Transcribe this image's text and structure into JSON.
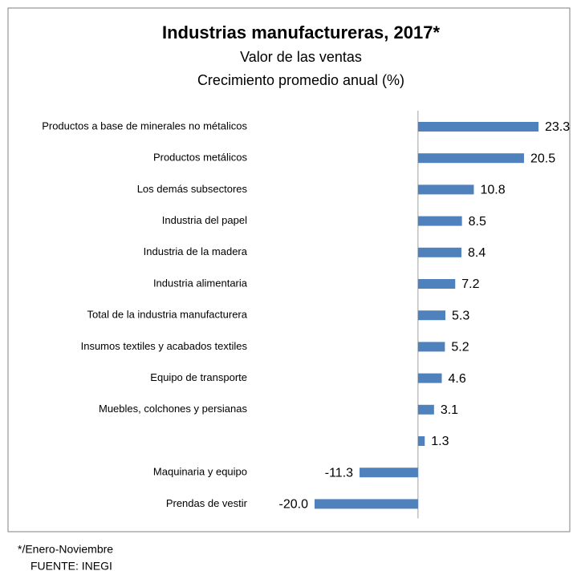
{
  "chart_data": {
    "type": "bar",
    "orientation": "horizontal",
    "title": "Industrias manufactureras, 2017*",
    "subtitle": [
      "Valor de las ventas",
      "Crecimiento promedio anual (%)"
    ],
    "categories": [
      "Productos a base de minerales no métalicos",
      "Productos metálicos",
      "Los demás subsectores",
      "Industria del papel",
      "Industria de la madera",
      "Industria alimentaria",
      "Total de la industria manufacturera",
      "Insumos textiles y acabados textiles",
      "Equipo de transporte",
      "Muebles, colchones y persianas",
      null,
      "Maquinaria y equipo",
      "Prendas de vestir"
    ],
    "values": [
      23.3,
      20.5,
      10.8,
      8.5,
      8.4,
      7.2,
      5.3,
      5.2,
      4.6,
      3.1,
      1.3,
      -11.3,
      -20.0
    ],
    "value_labels": [
      "23.3",
      "20.5",
      "10.8",
      "8.5",
      "8.4",
      "7.2",
      "5.3",
      "5.2",
      "4.6",
      "3.1",
      "1.3",
      "-11.3",
      "-20.0"
    ],
    "color": "#4f81bd",
    "footnote": "*/Enero-Noviembre",
    "source": "FUENTE: INEGI"
  }
}
